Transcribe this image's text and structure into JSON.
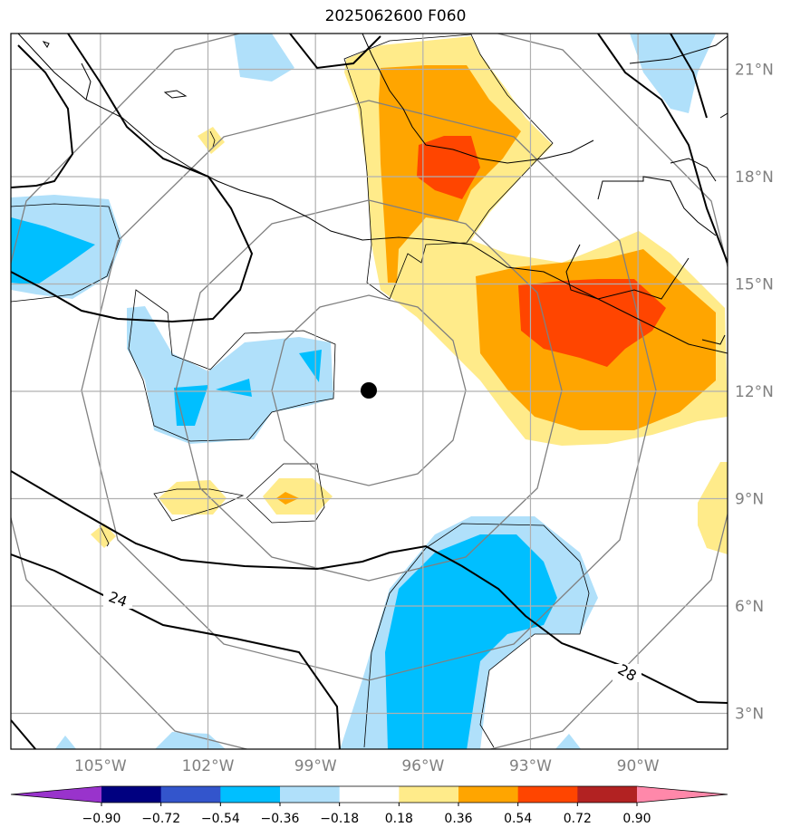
{
  "title": "2025062600 F060",
  "map": {
    "lon_ticks": [
      {
        "label": "105°W",
        "value": -105
      },
      {
        "label": "102°W",
        "value": -102
      },
      {
        "label": "99°W",
        "value": -99
      },
      {
        "label": "96°W",
        "value": -96
      },
      {
        "label": "93°W",
        "value": -93
      },
      {
        "label": "90°W",
        "value": -90
      }
    ],
    "lat_ticks": [
      {
        "label": "21°N",
        "value": 21
      },
      {
        "label": "18°N",
        "value": 18
      },
      {
        "label": "15°N",
        "value": 15
      },
      {
        "label": "12°N",
        "value": 12
      },
      {
        "label": "9°N",
        "value": 9
      },
      {
        "label": "6°N",
        "value": 6
      },
      {
        "label": "3°N",
        "value": 3
      }
    ],
    "lon_range": [
      -107.5,
      -87.5
    ],
    "lat_range": [
      2,
      22
    ],
    "storm_center": {
      "lon": -97.5,
      "lat": 12
    },
    "contour_labels": [
      "24",
      "28"
    ],
    "gridlines": true
  },
  "colorbar": {
    "labels": [
      "−0.90",
      "−0.72",
      "−0.54",
      "−0.36",
      "−0.18",
      "0.18",
      "0.36",
      "0.54",
      "0.72",
      "0.90"
    ],
    "colors": [
      "#9933cc",
      "#000080",
      "#3355cc",
      "#00bfff",
      "#b0e0fa",
      "#ffffff",
      "#ffeb8a",
      "#ffa500",
      "#ff4500",
      "#b22222",
      "#ff88aa"
    ]
  }
}
